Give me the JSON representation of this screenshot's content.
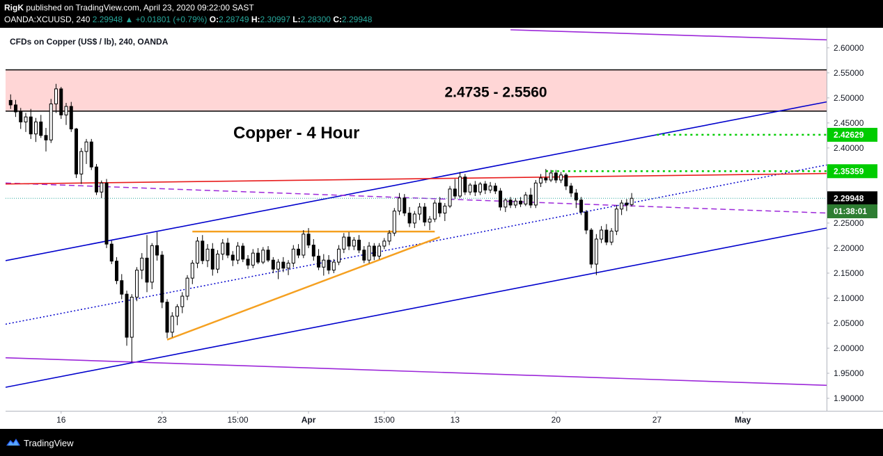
{
  "header": {
    "publisher": "RigK",
    "publish_text": "published on TradingView.com, April 23, 2020 09:22:00 SAST",
    "symbol": "OANDA:XCUUSD, 240",
    "last": "2.29948",
    "change": "▲ +0.01801 (+0.79%)",
    "o_label": "O:",
    "o_value": "2.28749",
    "h_label": "H:",
    "h_value": "2.30997",
    "l_label": "L:",
    "l_value": "2.28300",
    "c_label": "C:",
    "c_value": "2.29948"
  },
  "chart_title": "CFDs on Copper (US$ / lb), 240, OANDA",
  "footer": {
    "brand": "TradingView"
  },
  "colors": {
    "up": "#26a69a",
    "channel": "#0000cc",
    "purple": "#9c27d9",
    "red": "#e81c1c",
    "orange": "#f5a020",
    "green": "#00cc00",
    "zone": "#ffd6d6",
    "price_tag": "#2e7d32"
  },
  "chart_data": {
    "type": "candlestick",
    "symbol": "XCUUSD",
    "interval": "240",
    "annotations": {
      "zone_label": "2.4735 - 2.5560",
      "main_title": "Copper - 4 Hour"
    },
    "price_labels": [
      {
        "label": "2.42629",
        "value": 2.42629
      },
      {
        "label": "2.35359",
        "value": 2.35359
      },
      {
        "label": "2.29948",
        "value": 2.29948
      },
      {
        "label": "01:38:01",
        "value": 2.2735
      }
    ],
    "y_ticks": [
      "2.60000",
      "2.55000",
      "2.50000",
      "2.45000",
      "2.40000",
      "2.35000",
      "2.30000",
      "2.25000",
      "2.20000",
      "2.15000",
      "2.10000",
      "2.05000",
      "2.00000",
      "1.95000",
      "1.90000"
    ],
    "y_tick_values": [
      2.6,
      2.55,
      2.5,
      2.45,
      2.4,
      2.35,
      2.3,
      2.25,
      2.2,
      2.15,
      2.1,
      2.05,
      2.0,
      1.95,
      1.9
    ],
    "ylim": [
      1.875,
      2.64
    ],
    "x_ticks": [
      {
        "label": "16",
        "bar": 10
      },
      {
        "label": "23",
        "bar": 30
      },
      {
        "label": "15:00",
        "bar": 45
      },
      {
        "label": "Apr",
        "bar": 59
      },
      {
        "label": "15:00",
        "bar": 74
      },
      {
        "label": "13",
        "bar": 88
      },
      {
        "label": "20",
        "bar": 108
      },
      {
        "label": "27",
        "bar": 128
      },
      {
        "label": "May",
        "bar": 145
      }
    ],
    "x_range_bars": [
      -1.0,
      161.6
    ],
    "zone": {
      "low": 2.4735,
      "high": 2.556
    },
    "levels": [
      {
        "name": "2.42629",
        "value": 2.42629,
        "from_bar": 128
      },
      {
        "name": "2.35359",
        "value": 2.35359,
        "from_bar": 106
      }
    ],
    "lines": [
      {
        "name": "upper-channel",
        "style": "solid",
        "color": "blue",
        "p1": [
          -1,
          2.175
        ],
        "p2": [
          161.6,
          2.492
        ]
      },
      {
        "name": "lower-channel",
        "style": "solid",
        "color": "blue",
        "p1": [
          -1,
          1.922
        ],
        "p2": [
          161.6,
          2.24
        ]
      },
      {
        "name": "mid-channel",
        "style": "dotted",
        "color": "blue",
        "p1": [
          -1,
          2.048
        ],
        "p2": [
          161.6,
          2.366
        ]
      },
      {
        "name": "upper-purple",
        "style": "solid",
        "color": "purple",
        "p1": [
          99,
          2.636
        ],
        "p2": [
          161.6,
          2.616
        ]
      },
      {
        "name": "lower-purple",
        "style": "solid",
        "color": "purple",
        "p1": [
          -1,
          1.981
        ],
        "p2": [
          161.6,
          1.926
        ]
      },
      {
        "name": "purple-dashed",
        "style": "dashed",
        "color": "purple",
        "p1": [
          -1,
          2.33
        ],
        "p2": [
          161.6,
          2.27
        ]
      },
      {
        "name": "red-resistance",
        "style": "solid",
        "color": "red",
        "p1": [
          -1,
          2.328
        ],
        "p2": [
          161.6,
          2.349
        ]
      },
      {
        "name": "orange-top",
        "style": "solid",
        "color": "orange",
        "p1": [
          36,
          2.233
        ],
        "p2": [
          84,
          2.233
        ]
      },
      {
        "name": "orange-rising",
        "style": "solid",
        "color": "orange",
        "p1": [
          31,
          2.017
        ],
        "p2": [
          85,
          2.222
        ]
      }
    ],
    "candles": [
      [
        2.495,
        2.507,
        2.478,
        2.486
      ],
      [
        2.486,
        2.496,
        2.462,
        2.472
      ],
      [
        2.472,
        2.48,
        2.438,
        2.452
      ],
      [
        2.452,
        2.47,
        2.432,
        2.462
      ],
      [
        2.462,
        2.478,
        2.418,
        2.428
      ],
      [
        2.428,
        2.46,
        2.412,
        2.452
      ],
      [
        2.452,
        2.466,
        2.42,
        2.425
      ],
      [
        2.425,
        2.44,
        2.393,
        2.416
      ],
      [
        2.416,
        2.498,
        2.41,
        2.488
      ],
      [
        2.488,
        2.528,
        2.47,
        2.518
      ],
      [
        2.518,
        2.522,
        2.458,
        2.466
      ],
      [
        2.466,
        2.49,
        2.446,
        2.483
      ],
      [
        2.483,
        2.492,
        2.432,
        2.438
      ],
      [
        2.438,
        2.44,
        2.34,
        2.348
      ],
      [
        2.348,
        2.4,
        2.328,
        2.393
      ],
      [
        2.393,
        2.418,
        2.368,
        2.412
      ],
      [
        2.412,
        2.418,
        2.356,
        2.362
      ],
      [
        2.362,
        2.368,
        2.306,
        2.312
      ],
      [
        2.312,
        2.335,
        2.3,
        2.33
      ],
      [
        2.33,
        2.338,
        2.2,
        2.208
      ],
      [
        2.208,
        2.215,
        2.168,
        2.174
      ],
      [
        2.174,
        2.182,
        2.128,
        2.135
      ],
      [
        2.135,
        2.148,
        2.098,
        2.108
      ],
      [
        2.108,
        2.115,
        2.005,
        2.022
      ],
      [
        2.022,
        2.108,
        1.972,
        2.102
      ],
      [
        2.102,
        2.162,
        2.094,
        2.156
      ],
      [
        2.156,
        2.19,
        2.138,
        2.18
      ],
      [
        2.18,
        2.226,
        2.112,
        2.132
      ],
      [
        2.132,
        2.21,
        2.118,
        2.205
      ],
      [
        2.205,
        2.232,
        2.175,
        2.186
      ],
      [
        2.186,
        2.194,
        2.08,
        2.092
      ],
      [
        2.092,
        2.098,
        2.02,
        2.032
      ],
      [
        2.032,
        2.072,
        2.022,
        2.064
      ],
      [
        2.064,
        2.088,
        2.046,
        2.083
      ],
      [
        2.083,
        2.112,
        2.07,
        2.104
      ],
      [
        2.104,
        2.146,
        2.096,
        2.14
      ],
      [
        2.14,
        2.176,
        2.128,
        2.17
      ],
      [
        2.17,
        2.222,
        2.16,
        2.214
      ],
      [
        2.214,
        2.226,
        2.168,
        2.175
      ],
      [
        2.175,
        2.208,
        2.162,
        2.198
      ],
      [
        2.198,
        2.21,
        2.145,
        2.158
      ],
      [
        2.158,
        2.196,
        2.15,
        2.188
      ],
      [
        2.188,
        2.218,
        2.176,
        2.21
      ],
      [
        2.21,
        2.22,
        2.18,
        2.186
      ],
      [
        2.186,
        2.194,
        2.164,
        2.176
      ],
      [
        2.176,
        2.212,
        2.168,
        2.204
      ],
      [
        2.204,
        2.21,
        2.172,
        2.178
      ],
      [
        2.178,
        2.186,
        2.158,
        2.166
      ],
      [
        2.166,
        2.198,
        2.16,
        2.19
      ],
      [
        2.19,
        2.2,
        2.168,
        2.172
      ],
      [
        2.172,
        2.202,
        2.168,
        2.196
      ],
      [
        2.196,
        2.204,
        2.172,
        2.176
      ],
      [
        2.176,
        2.182,
        2.15,
        2.158
      ],
      [
        2.158,
        2.178,
        2.138,
        2.172
      ],
      [
        2.172,
        2.182,
        2.152,
        2.16
      ],
      [
        2.16,
        2.176,
        2.146,
        2.17
      ],
      [
        2.17,
        2.206,
        2.162,
        2.198
      ],
      [
        2.198,
        2.208,
        2.18,
        2.186
      ],
      [
        2.186,
        2.236,
        2.18,
        2.228
      ],
      [
        2.228,
        2.24,
        2.2,
        2.206
      ],
      [
        2.206,
        2.218,
        2.175,
        2.184
      ],
      [
        2.184,
        2.198,
        2.156,
        2.162
      ],
      [
        2.162,
        2.188,
        2.145,
        2.176
      ],
      [
        2.176,
        2.186,
        2.148,
        2.156
      ],
      [
        2.156,
        2.178,
        2.15,
        2.172
      ],
      [
        2.172,
        2.206,
        2.166,
        2.198
      ],
      [
        2.198,
        2.23,
        2.19,
        2.222
      ],
      [
        2.222,
        2.232,
        2.196,
        2.204
      ],
      [
        2.204,
        2.222,
        2.196,
        2.216
      ],
      [
        2.216,
        2.226,
        2.19,
        2.196
      ],
      [
        2.196,
        2.204,
        2.17,
        2.176
      ],
      [
        2.176,
        2.212,
        2.17,
        2.204
      ],
      [
        2.204,
        2.21,
        2.176,
        2.184
      ],
      [
        2.184,
        2.21,
        2.178,
        2.204
      ],
      [
        2.204,
        2.22,
        2.198,
        2.214
      ],
      [
        2.214,
        2.236,
        2.206,
        2.23
      ],
      [
        2.23,
        2.28,
        2.224,
        2.274
      ],
      [
        2.274,
        2.31,
        2.266,
        2.3
      ],
      [
        2.3,
        2.308,
        2.264,
        2.27
      ],
      [
        2.27,
        2.282,
        2.242,
        2.25
      ],
      [
        2.25,
        2.274,
        2.24,
        2.268
      ],
      [
        2.268,
        2.29,
        2.256,
        2.282
      ],
      [
        2.282,
        2.29,
        2.244,
        2.252
      ],
      [
        2.252,
        2.264,
        2.236,
        2.258
      ],
      [
        2.258,
        2.296,
        2.252,
        2.29
      ],
      [
        2.29,
        2.302,
        2.262,
        2.27
      ],
      [
        2.27,
        2.29,
        2.254,
        2.284
      ],
      [
        2.284,
        2.324,
        2.28,
        2.318
      ],
      [
        2.318,
        2.338,
        2.298,
        2.304
      ],
      [
        2.304,
        2.352,
        2.3,
        2.342
      ],
      [
        2.342,
        2.348,
        2.306,
        2.312
      ],
      [
        2.312,
        2.33,
        2.306,
        2.326
      ],
      [
        2.326,
        2.334,
        2.304,
        2.312
      ],
      [
        2.312,
        2.332,
        2.306,
        2.328
      ],
      [
        2.328,
        2.334,
        2.308,
        2.316
      ],
      [
        2.316,
        2.332,
        2.31,
        2.324
      ],
      [
        2.324,
        2.33,
        2.308,
        2.314
      ],
      [
        2.314,
        2.32,
        2.275,
        2.282
      ],
      [
        2.282,
        2.3,
        2.272,
        2.296
      ],
      [
        2.296,
        2.302,
        2.28,
        2.286
      ],
      [
        2.286,
        2.3,
        2.28,
        2.294
      ],
      [
        2.294,
        2.302,
        2.282,
        2.288
      ],
      [
        2.288,
        2.312,
        2.284,
        2.306
      ],
      [
        2.306,
        2.32,
        2.28,
        2.286
      ],
      [
        2.286,
        2.336,
        2.28,
        2.33
      ],
      [
        2.33,
        2.348,
        2.322,
        2.34
      ],
      [
        2.34,
        2.358,
        2.33,
        2.336
      ],
      [
        2.336,
        2.356,
        2.332,
        2.35
      ],
      [
        2.35,
        2.356,
        2.33,
        2.336
      ],
      [
        2.336,
        2.352,
        2.33,
        2.346
      ],
      [
        2.346,
        2.35,
        2.316,
        2.324
      ],
      [
        2.324,
        2.33,
        2.302,
        2.31
      ],
      [
        2.31,
        2.318,
        2.28,
        2.296
      ],
      [
        2.296,
        2.302,
        2.266,
        2.272
      ],
      [
        2.272,
        2.276,
        2.228,
        2.236
      ],
      [
        2.236,
        2.24,
        2.16,
        2.168
      ],
      [
        2.168,
        2.228,
        2.146,
        2.218
      ],
      [
        2.218,
        2.244,
        2.21,
        2.236
      ],
      [
        2.236,
        2.248,
        2.206,
        2.212
      ],
      [
        2.212,
        2.24,
        2.206,
        2.234
      ],
      [
        2.234,
        2.286,
        2.226,
        2.278
      ],
      [
        2.278,
        2.296,
        2.266,
        2.29
      ],
      [
        2.29,
        2.298,
        2.274,
        2.286
      ],
      [
        2.287,
        2.31,
        2.283,
        2.2995
      ]
    ]
  }
}
